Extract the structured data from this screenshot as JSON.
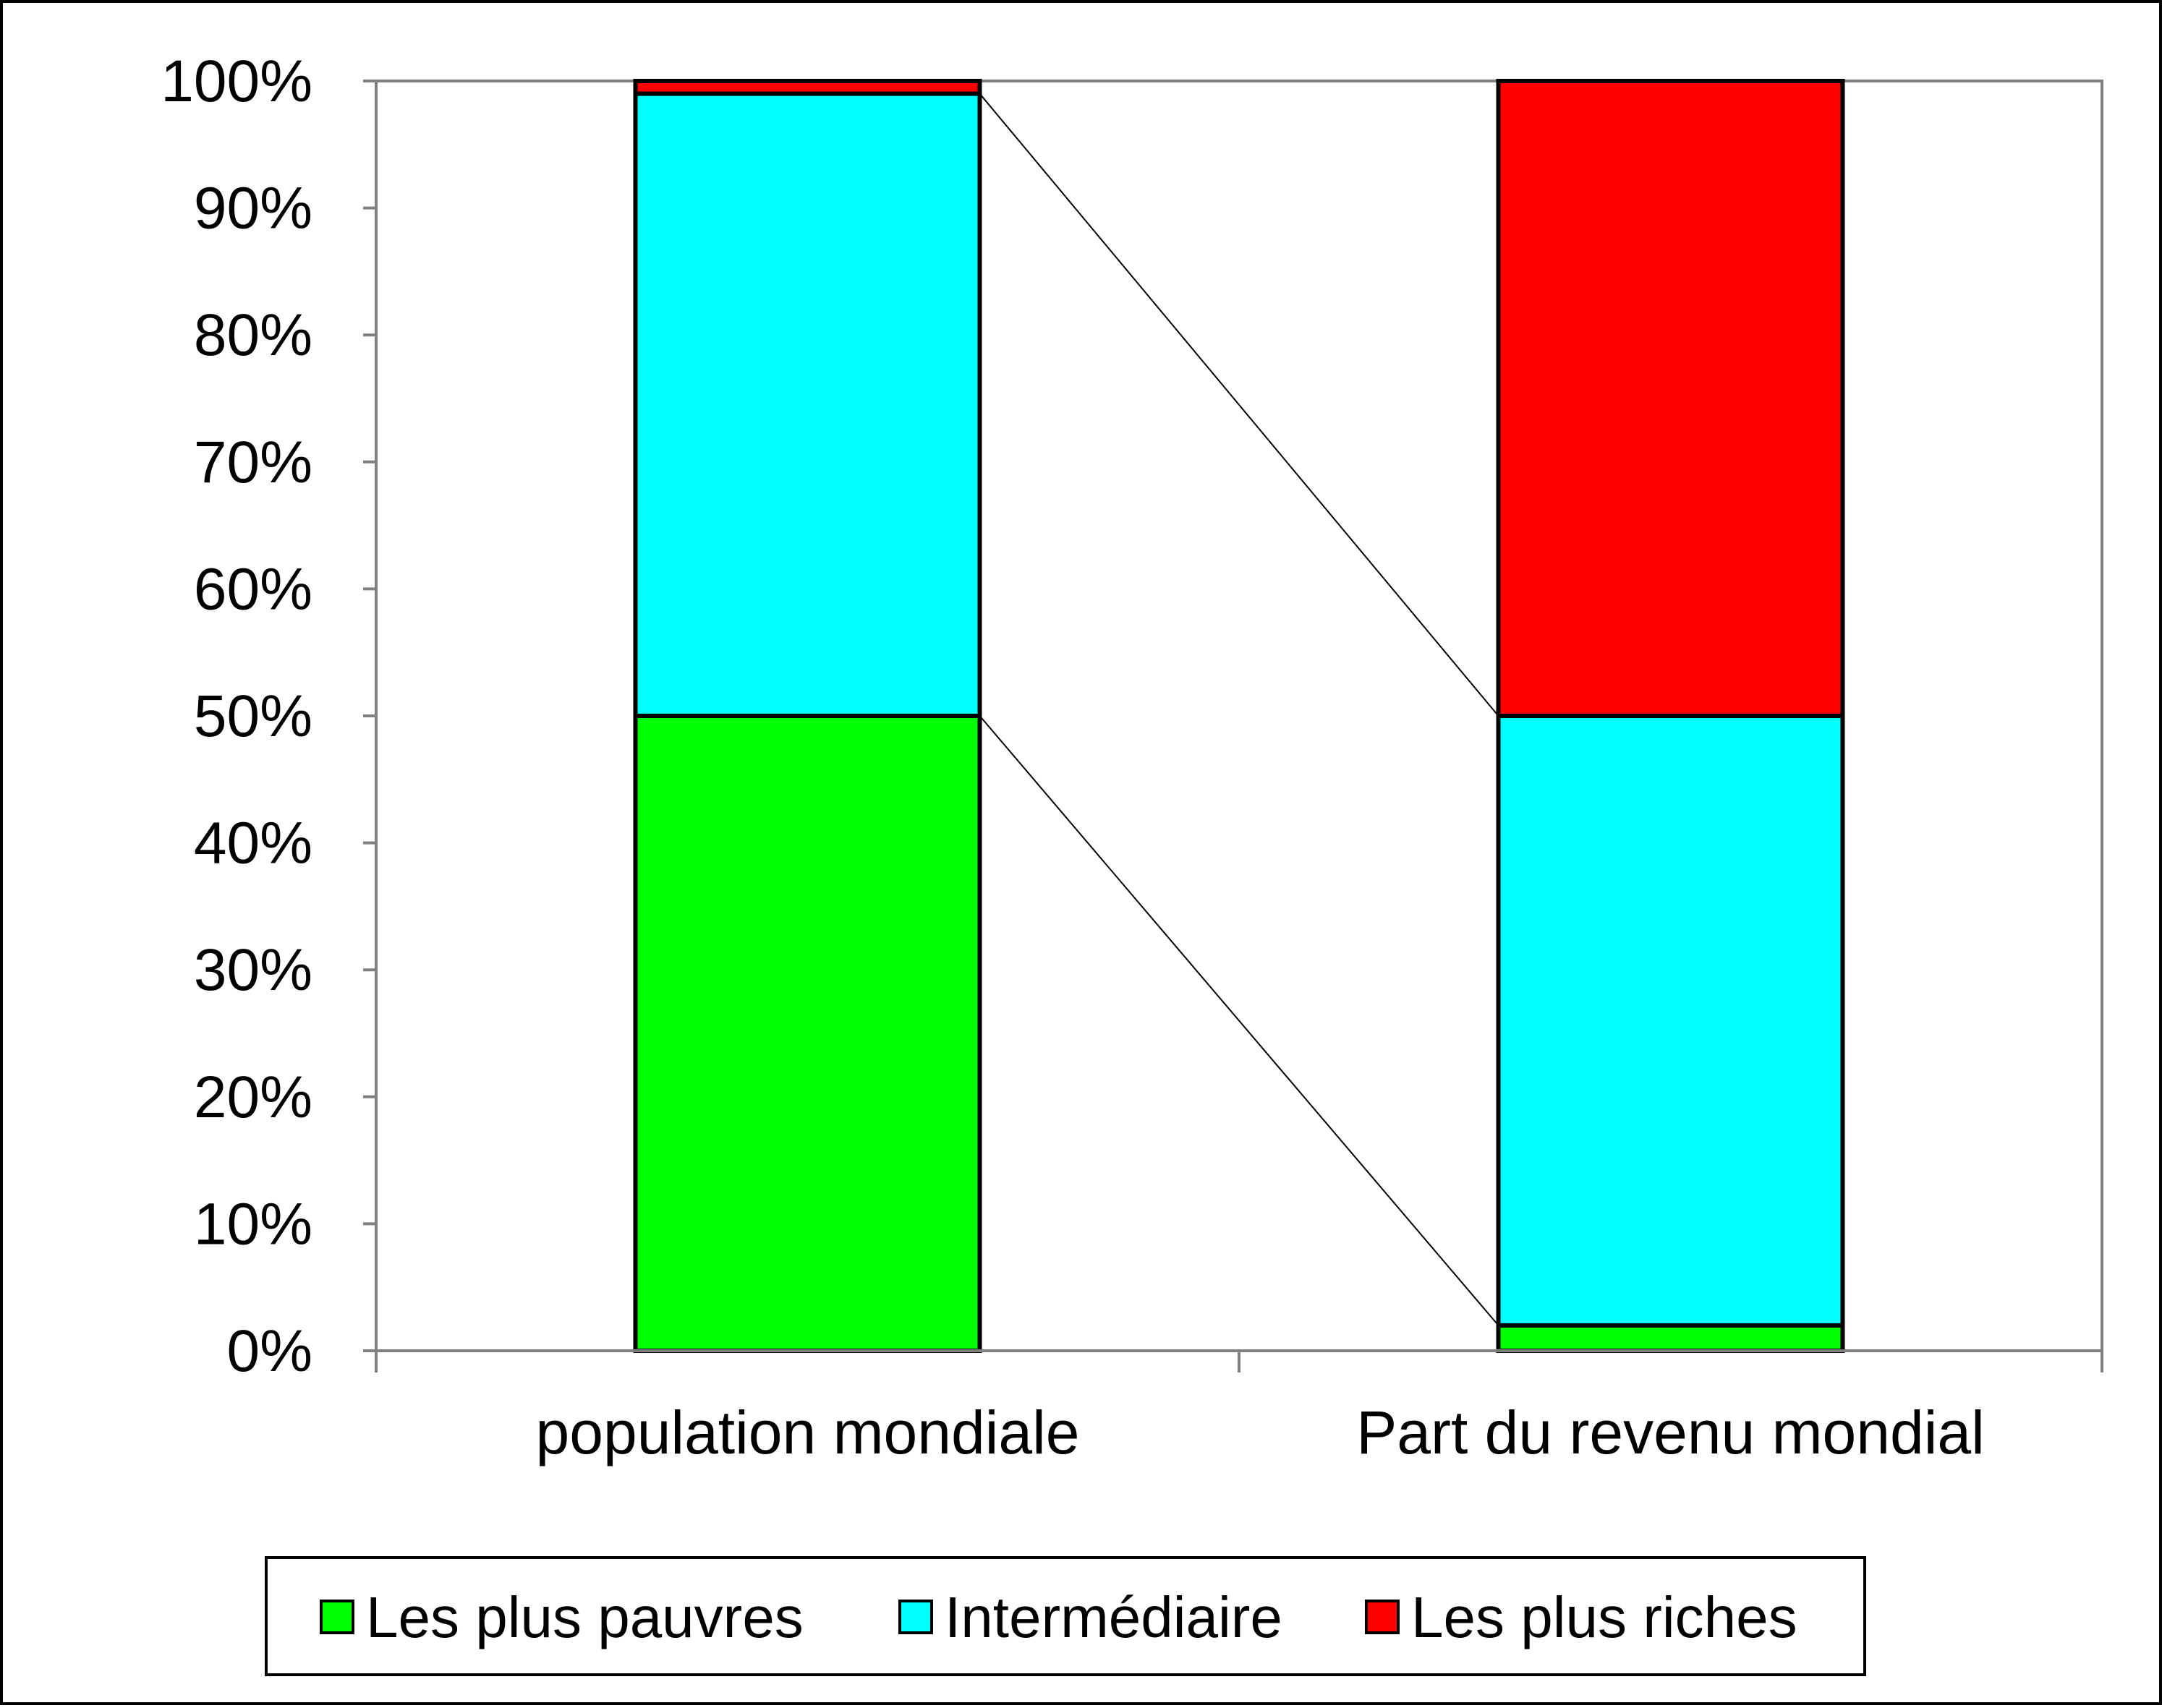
{
  "chart_data": {
    "type": "bar",
    "stacked": true,
    "categories": [
      "population mondiale",
      "Part du revenu mondial"
    ],
    "series": [
      {
        "name": "Les plus pauvres",
        "color": "#00ff00",
        "values": [
          50,
          2
        ]
      },
      {
        "name": "Intermédiaire",
        "color": "#00ffff",
        "values": [
          49,
          48
        ]
      },
      {
        "name": "Les plus riches",
        "color": "#ff0000",
        "values": [
          1,
          50
        ]
      }
    ],
    "ylim": [
      0,
      100
    ],
    "yticks": [
      0,
      10,
      20,
      30,
      40,
      50,
      60,
      70,
      80,
      90,
      100
    ],
    "ytick_format": "{v}%",
    "title": "",
    "xlabel": "",
    "ylabel": "",
    "grid": false,
    "legend_position": "bottom",
    "connector_lines": true,
    "plot_border_color": "#808080"
  }
}
